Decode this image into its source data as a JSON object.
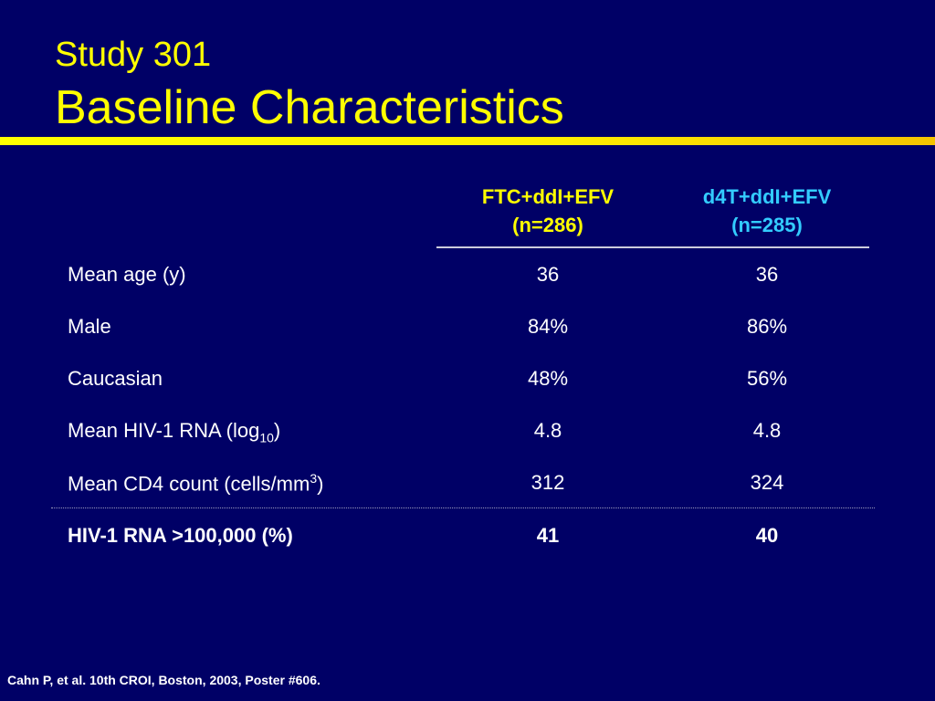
{
  "title": {
    "subtitle": "Study 301",
    "main": "Baseline Characteristics"
  },
  "table": {
    "columns": [
      {
        "name": "FTC+ddI+EFV",
        "n": "(n=286)",
        "color": "#ffff00"
      },
      {
        "name": "d4T+ddI+EFV",
        "n": "(n=285)",
        "color": "#33ccff"
      }
    ],
    "rows": [
      {
        "label": "Mean age (y)",
        "values": [
          "36",
          "36"
        ]
      },
      {
        "label": "Male",
        "values": [
          "84%",
          "86%"
        ]
      },
      {
        "label": "Caucasian",
        "values": [
          "48%",
          "56%"
        ]
      },
      {
        "label_pre": "Mean HIV-1 RNA (log",
        "label_sub": "10",
        "label_post": ")",
        "values": [
          "4.8",
          "4.8"
        ]
      },
      {
        "label_pre": "Mean CD4 count (cells/mm",
        "label_sup": "3",
        "label_post": ")",
        "values": [
          "312",
          "324"
        ]
      },
      {
        "label": "HIV-1 RNA >100,000 (%)",
        "values": [
          "41",
          "40"
        ],
        "bold": true
      }
    ]
  },
  "citation": "Cahn P, et al. 10th CROI, Boston, 2003, Poster #606.",
  "colors": {
    "background": "#000066",
    "title": "#ffff00",
    "text": "#ffffff",
    "accent": "#33ccff"
  }
}
